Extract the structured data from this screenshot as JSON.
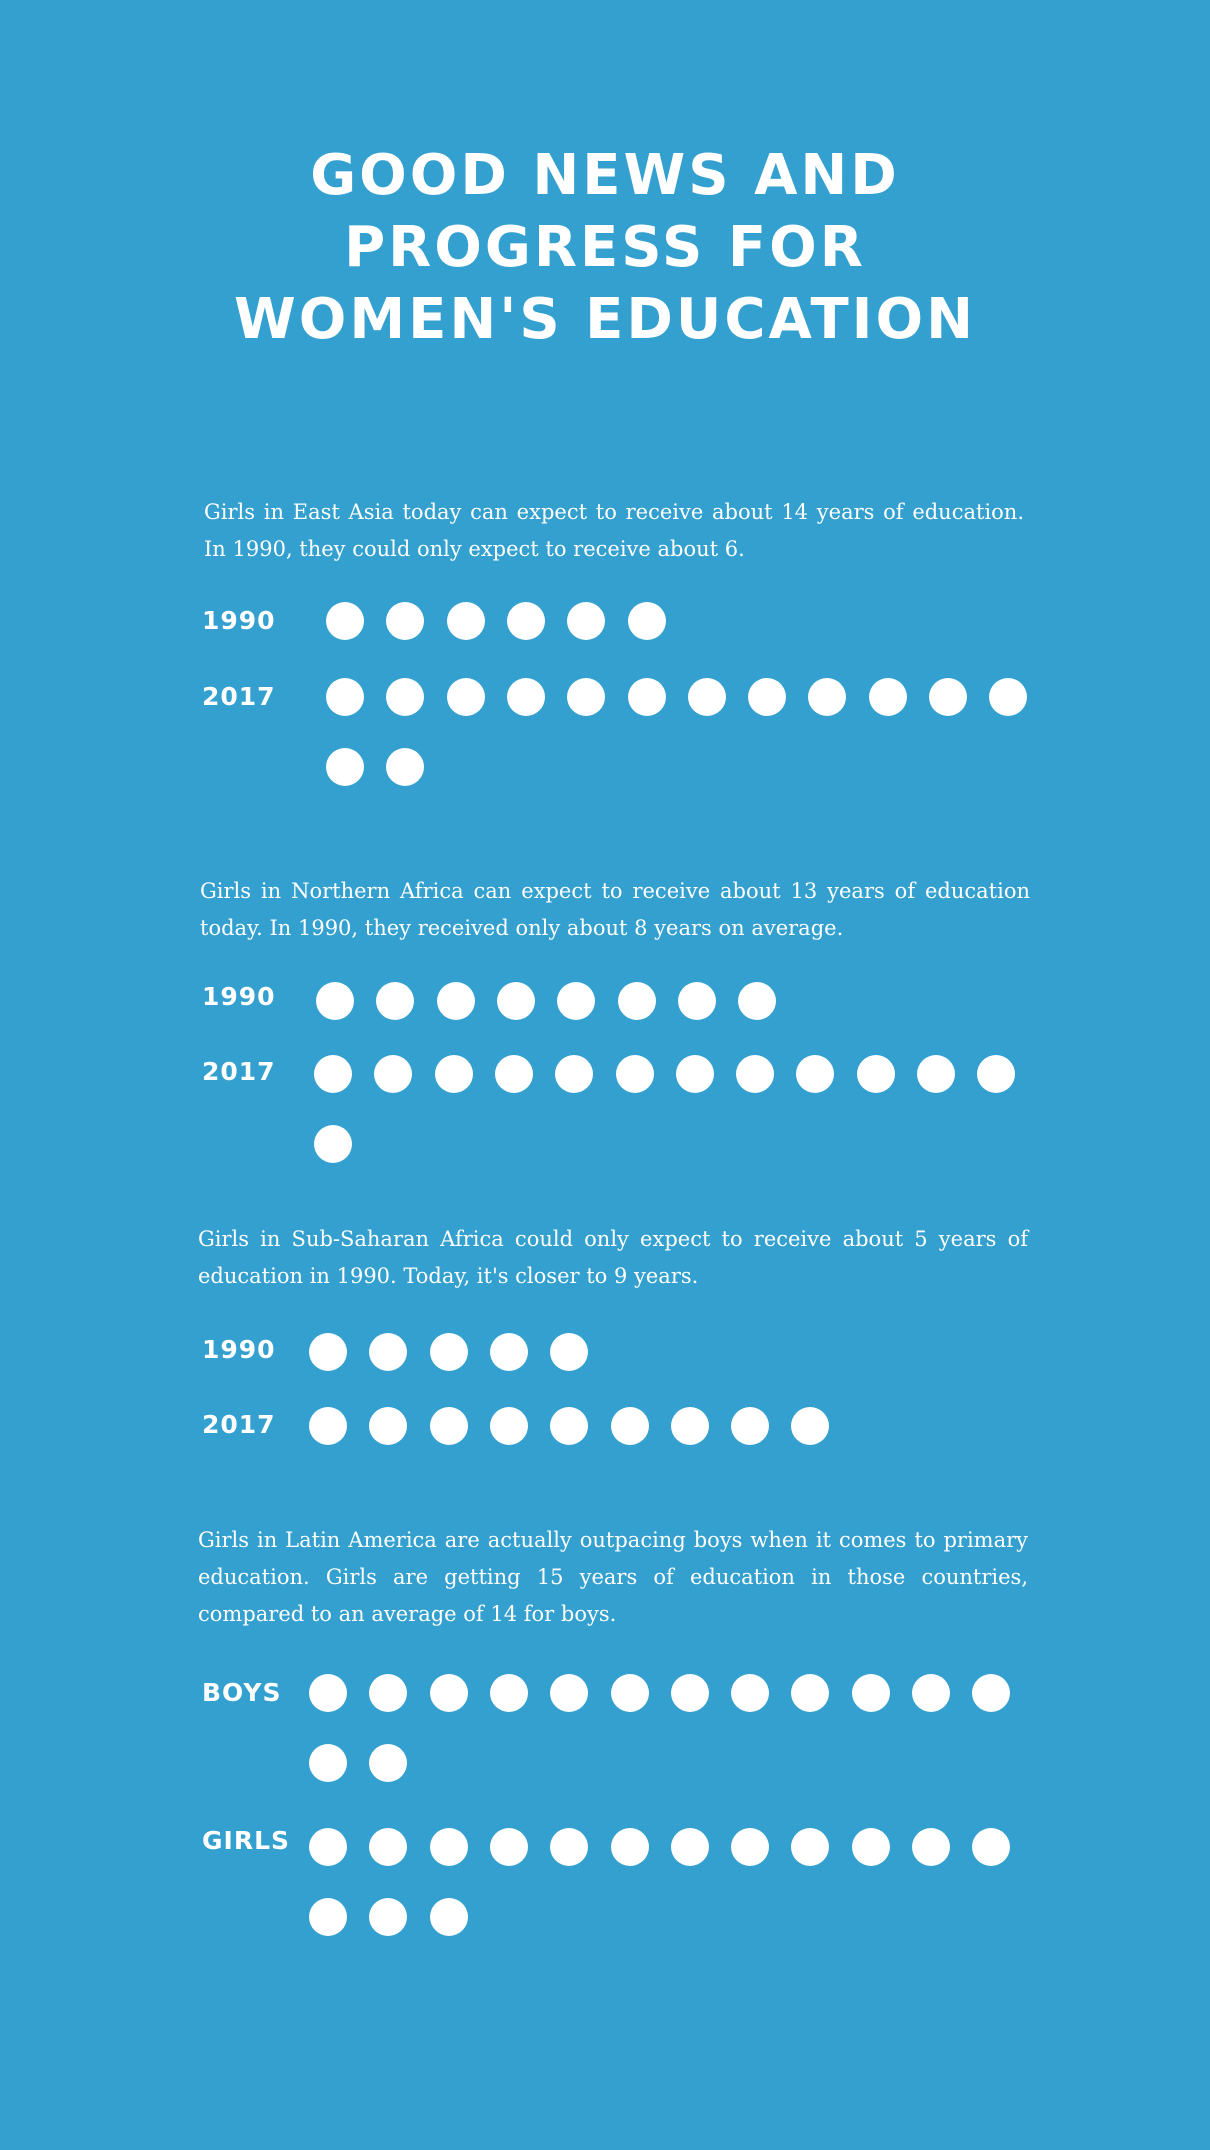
{
  "title_lines": [
    "Good News and",
    "Progress for",
    "Women's Education"
  ],
  "chart_data": {
    "type": "dot",
    "title": "Good News and Progress for Women's Education",
    "unit": "years of education",
    "groups": [
      {
        "text": "Girls in East Asia today can expect to receive about 14 years of education. In 1990, they could only expect to receive about 6.",
        "rows": [
          {
            "label": "1990",
            "value": 6
          },
          {
            "label": "2017",
            "value": 14
          }
        ]
      },
      {
        "text": "Girls in Northern Africa can expect to receive about 13 years of education today. In 1990, they received only about 8 years on average.",
        "rows": [
          {
            "label": "1990",
            "value": 8
          },
          {
            "label": "2017",
            "value": 13
          }
        ]
      },
      {
        "text": "Girls in Sub-Saharan Africa could only expect to receive about 5 years of education in 1990. Today, it's closer to 9 years.",
        "rows": [
          {
            "label": "1990",
            "value": 5
          },
          {
            "label": "2017",
            "value": 9
          }
        ]
      },
      {
        "text": "Girls in Latin America are actually outpacing boys when it comes to primary education. Girls are getting 15 years of education in those countries, compared to an average of 14 for boys.",
        "rows": [
          {
            "label": "BOYS",
            "value": 14
          },
          {
            "label": "GIRLS",
            "value": 15
          }
        ]
      }
    ]
  }
}
